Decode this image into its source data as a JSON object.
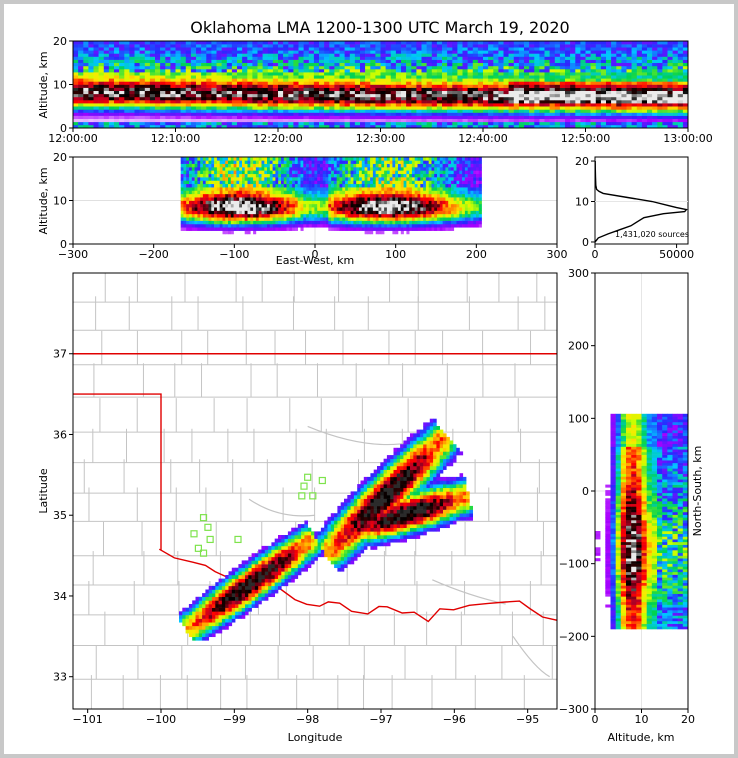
{
  "title": "Oklahoma LMA 1200-1300 UTC March 19, 2020",
  "chart_data": [
    {
      "id": "time_altitude",
      "type": "heatmap",
      "xlabel": "",
      "ylabel": "Altitude, km",
      "x_ticks": [
        "12:00:00",
        "12:10:00",
        "12:20:00",
        "12:30:00",
        "12:40:00",
        "12:50:00",
        "13:00:00"
      ],
      "xlim": [
        0,
        60
      ],
      "ylim": [
        0,
        20
      ],
      "y_ticks": [
        0,
        10,
        20
      ]
    },
    {
      "id": "eastwest_altitude",
      "type": "heatmap",
      "xlabel": "East-West, km",
      "ylabel": "Altitude, km",
      "xlim": [
        -300,
        300
      ],
      "x_ticks": [
        -300,
        -200,
        -100,
        0,
        100,
        200,
        300
      ],
      "ylim": [
        0,
        20
      ],
      "y_ticks": [
        0,
        10,
        20
      ]
    },
    {
      "id": "altitude_histogram",
      "type": "line",
      "xlim": [
        0,
        57000
      ],
      "x_ticks": [
        0,
        50000
      ],
      "ylim": [
        -0.5,
        21
      ],
      "y_ticks": [
        0,
        10,
        20
      ],
      "annotation": "1,431,020 sources",
      "series": [
        {
          "name": "sources",
          "altitude": [
            0,
            1,
            2,
            3,
            4,
            5,
            6,
            7,
            7.5,
            8,
            8.5,
            9,
            10,
            11,
            12,
            12.5,
            13,
            14,
            16,
            18,
            20
          ],
          "count": [
            0,
            2000,
            8000,
            15000,
            22000,
            26000,
            30000,
            42000,
            55000,
            56000,
            50000,
            45000,
            35000,
            20000,
            5000,
            2500,
            1000,
            500,
            300,
            200,
            100
          ]
        }
      ]
    },
    {
      "id": "plan_view",
      "type": "heatmap",
      "xlabel": "Longitude",
      "ylabel": "Latitude",
      "xlim": [
        -101.2,
        -94.6
      ],
      "ylim": [
        32.6,
        38.0
      ],
      "x_ticks": [
        -101,
        -100,
        -99,
        -98,
        -97,
        -96,
        -95
      ],
      "y_ticks": [
        33,
        34,
        35,
        36,
        37
      ],
      "stations": [
        [
          -98.0,
          35.47
        ],
        [
          -97.8,
          35.43
        ],
        [
          -98.05,
          35.36
        ],
        [
          -98.08,
          35.24
        ],
        [
          -97.93,
          35.24
        ],
        [
          -99.42,
          34.97
        ],
        [
          -99.36,
          34.85
        ],
        [
          -99.55,
          34.77
        ],
        [
          -99.33,
          34.7
        ],
        [
          -98.95,
          34.7
        ],
        [
          -99.49,
          34.59
        ],
        [
          -99.42,
          34.53
        ]
      ]
    },
    {
      "id": "altitude_northsouth",
      "type": "heatmap",
      "xlabel": "Altitude, km",
      "ylabel": "North-South, km",
      "xlim": [
        0,
        20
      ],
      "x_ticks": [
        0,
        10,
        20
      ],
      "ylim": [
        -300,
        300
      ],
      "y_ticks": [
        -300,
        -200,
        -100,
        0,
        100,
        200,
        300
      ]
    }
  ]
}
